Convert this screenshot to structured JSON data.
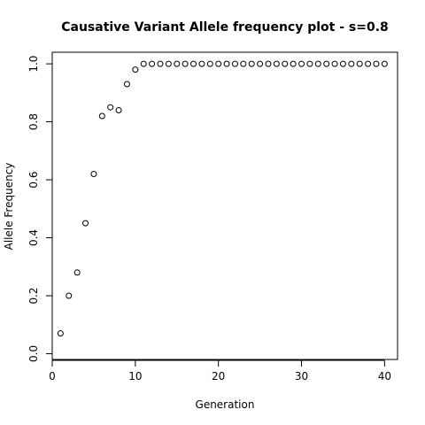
{
  "chart_data": {
    "type": "scatter",
    "title": "Causative Variant Allele frequency plot - s=0.8",
    "xlabel": "Generation",
    "ylabel": "Allele Frequency",
    "xlim": [
      0,
      41.56
    ],
    "ylim": [
      -0.02,
      1.04
    ],
    "x_ticks": [
      0,
      10,
      20,
      30,
      40
    ],
    "x_tick_labels": [
      "0",
      "10",
      "20",
      "30",
      "40"
    ],
    "y_ticks": [
      0.0,
      0.2,
      0.4,
      0.6,
      0.8,
      1.0
    ],
    "y_tick_labels": [
      "0.0",
      "0.2",
      "0.4",
      "0.6",
      "0.8",
      "1.0"
    ],
    "grid": false,
    "legend": "none",
    "marker": "open-circle",
    "x": [
      1,
      2,
      3,
      4,
      5,
      6,
      7,
      8,
      9,
      10,
      11,
      12,
      13,
      14,
      15,
      16,
      17,
      18,
      19,
      20,
      21,
      22,
      23,
      24,
      25,
      26,
      27,
      28,
      29,
      30,
      31,
      32,
      33,
      34,
      35,
      36,
      37,
      38,
      39,
      40
    ],
    "y": [
      0.07,
      0.2,
      0.28,
      0.45,
      0.62,
      0.82,
      0.85,
      0.84,
      0.93,
      0.98,
      1.0,
      1.0,
      1.0,
      1.0,
      1.0,
      1.0,
      1.0,
      1.0,
      1.0,
      1.0,
      1.0,
      1.0,
      1.0,
      1.0,
      1.0,
      1.0,
      1.0,
      1.0,
      1.0,
      1.0,
      1.0,
      1.0,
      1.0,
      1.0,
      1.0,
      1.0,
      1.0,
      1.0,
      1.0,
      1.0
    ]
  }
}
